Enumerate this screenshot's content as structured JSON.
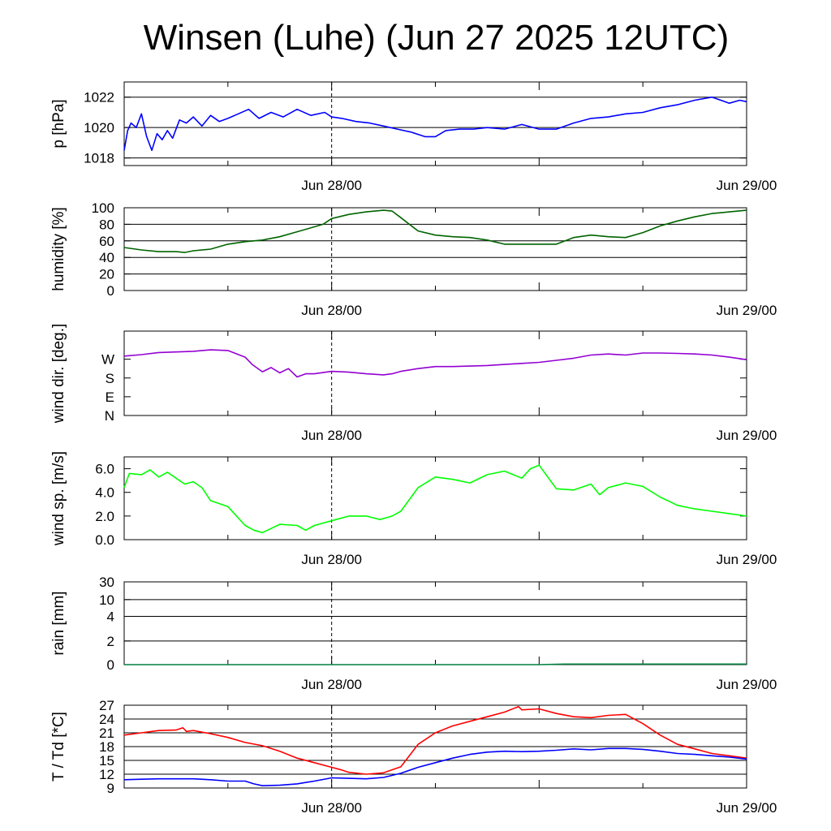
{
  "title": "Winsen (Luhe) (Jun 27 2025 12UTC)",
  "x_tick_labels": [
    "Jun 28/00",
    "Jun 29/00"
  ],
  "chart_data": [
    {
      "type": "line",
      "ylabel": "p [hPa]",
      "ylim": [
        1017.5,
        1023.0
      ],
      "yticks": [
        1018,
        1020,
        1022
      ],
      "ytick_labels": [
        "1018",
        "1020",
        "1022"
      ],
      "grid": true,
      "series": [
        {
          "color": "#0000ff",
          "x": [
            0,
            0.2,
            0.4,
            0.7,
            1.0,
            1.3,
            1.6,
            1.9,
            2.2,
            2.5,
            2.8,
            3.2,
            3.6,
            4.0,
            4.5,
            5.0,
            5.5,
            6.0,
            6.6,
            7.2,
            7.8,
            8.5,
            9.2,
            10.0,
            10.8,
            11.6,
            12.0,
            12.6,
            13.4,
            14.2,
            15.0,
            15.8,
            16.6,
            17.4,
            18.0,
            18.6,
            19.4,
            20.2,
            21.0,
            22.0,
            23.0,
            24.0,
            25.0,
            26.0,
            27.0,
            28.0,
            29.0,
            30.0,
            31.0,
            32.0,
            33.0,
            34.0,
            35.0,
            35.6,
            36.0
          ],
          "y": [
            1018.5,
            1019.8,
            1020.3,
            1020.0,
            1020.9,
            1019.4,
            1018.5,
            1019.6,
            1019.2,
            1019.8,
            1019.3,
            1020.5,
            1020.3,
            1020.7,
            1020.1,
            1020.8,
            1020.4,
            1020.6,
            1020.9,
            1021.2,
            1020.6,
            1021.0,
            1020.7,
            1021.2,
            1020.8,
            1021.0,
            1020.7,
            1020.6,
            1020.4,
            1020.3,
            1020.1,
            1019.9,
            1019.7,
            1019.4,
            1019.4,
            1019.8,
            1019.9,
            1019.9,
            1020.0,
            1019.9,
            1020.2,
            1019.9,
            1019.9,
            1020.3,
            1020.6,
            1020.7,
            1020.9,
            1021.0,
            1021.3,
            1021.5,
            1021.8,
            1022.0,
            1021.6,
            1021.8,
            1021.7
          ]
        }
      ]
    },
    {
      "type": "line",
      "ylabel": "humidity [%]",
      "ylim": [
        0,
        100
      ],
      "yticks": [
        0,
        20,
        40,
        60,
        80,
        100
      ],
      "ytick_labels": [
        "0",
        "20",
        "40",
        "60",
        "80",
        "100"
      ],
      "grid": true,
      "series": [
        {
          "color": "#006400",
          "x": [
            0,
            1,
            2,
            3,
            3.5,
            4,
            5,
            6,
            7,
            8,
            9,
            10,
            11,
            11.5,
            12,
            13,
            14,
            15,
            15.5,
            16,
            17,
            18,
            19,
            20,
            21,
            22,
            23,
            24,
            25,
            26,
            27,
            28,
            29,
            30,
            31,
            32,
            33,
            34,
            35,
            36
          ],
          "y": [
            52,
            49,
            47,
            47,
            46,
            48,
            50,
            56,
            59,
            61,
            65,
            71,
            77,
            80,
            87,
            92,
            95,
            97,
            96,
            88,
            72,
            67,
            65,
            64,
            61,
            56,
            56,
            56,
            56,
            64,
            67,
            65,
            64,
            70,
            78,
            84,
            89,
            93,
            95,
            97
          ]
        }
      ]
    },
    {
      "type": "line",
      "ylabel": "wind dir. [deg.]",
      "ylim": [
        0,
        405
      ],
      "yticks": [
        0,
        90,
        180,
        270
      ],
      "ytick_labels": [
        "N",
        "E",
        "S",
        "W"
      ],
      "grid": false,
      "series": [
        {
          "color": "#9400d3",
          "x": [
            0,
            1,
            2,
            3,
            4,
            5,
            6,
            7,
            7.4,
            8,
            8.5,
            9,
            9.5,
            10,
            10.5,
            11,
            12,
            13,
            14,
            15,
            15.5,
            16,
            17,
            18,
            19,
            20,
            21,
            22,
            23,
            24,
            25,
            26,
            27,
            28,
            29,
            30,
            31,
            32,
            33,
            34,
            35,
            36
          ],
          "y": [
            285,
            292,
            302,
            305,
            308,
            315,
            312,
            280,
            245,
            210,
            230,
            205,
            225,
            185,
            200,
            200,
            212,
            208,
            200,
            195,
            200,
            212,
            225,
            235,
            235,
            237,
            240,
            245,
            250,
            255,
            265,
            275,
            290,
            295,
            290,
            300,
            300,
            298,
            295,
            290,
            280,
            268
          ]
        }
      ]
    },
    {
      "type": "line",
      "ylabel": "wind sp. [m/s]",
      "ylim": [
        0,
        7.0
      ],
      "yticks": [
        0,
        2,
        4,
        6
      ],
      "ytick_labels": [
        "0.0",
        "2.0",
        "4.0",
        "6.0"
      ],
      "grid": false,
      "series": [
        {
          "color": "#00ff00",
          "x": [
            0,
            0.3,
            1,
            1.5,
            2,
            2.5,
            3,
            3.5,
            4,
            4.5,
            5,
            6,
            6.5,
            7,
            7.5,
            8,
            9,
            10,
            10.5,
            11,
            12,
            13,
            14,
            14.8,
            15.5,
            16,
            17,
            18,
            19,
            20,
            21,
            22,
            23,
            23.5,
            24,
            25,
            26,
            27,
            27.5,
            28,
            29,
            30,
            31,
            32,
            33,
            34,
            35,
            36
          ],
          "y": [
            4.4,
            5.6,
            5.5,
            5.9,
            5.3,
            5.7,
            5.2,
            4.7,
            4.9,
            4.4,
            3.3,
            2.8,
            2.0,
            1.2,
            0.8,
            0.6,
            1.3,
            1.2,
            0.8,
            1.2,
            1.6,
            2.0,
            2.0,
            1.7,
            2.0,
            2.4,
            4.4,
            5.3,
            5.1,
            4.8,
            5.5,
            5.8,
            5.2,
            6.0,
            6.3,
            4.3,
            4.2,
            4.7,
            3.8,
            4.4,
            4.8,
            4.5,
            3.6,
            2.9,
            2.6,
            2.4,
            2.2,
            2.0
          ]
        }
      ]
    },
    {
      "type": "area",
      "ylabel": "rain [mm]",
      "scale": "nonlinear",
      "yticks": [
        0,
        2,
        4,
        10,
        30
      ],
      "ytick_labels": [
        "0",
        "2",
        "4",
        "10",
        "30"
      ],
      "grid": true,
      "series": [
        {
          "color": "#008040",
          "x": [
            0,
            24,
            25.5,
            36
          ],
          "y": [
            0,
            0,
            0.05,
            0.05
          ]
        }
      ]
    },
    {
      "type": "line",
      "ylabel": "T / Td [*C]",
      "ylim": [
        9,
        27
      ],
      "yticks": [
        9,
        12,
        15,
        18,
        21,
        24,
        27
      ],
      "ytick_labels": [
        "9",
        "12",
        "15",
        "18",
        "21",
        "24",
        "27"
      ],
      "grid": true,
      "series": [
        {
          "color": "#ff0000",
          "x": [
            0,
            1,
            2,
            3,
            3.4,
            3.6,
            4,
            5,
            6,
            7,
            8,
            9,
            10,
            11,
            12,
            12.5,
            13,
            14,
            15,
            16,
            17,
            18,
            19,
            20,
            21,
            22,
            22.8,
            23,
            24,
            25,
            26,
            27,
            28,
            29,
            30,
            31,
            32,
            33,
            34,
            35,
            36
          ],
          "y": [
            20.5,
            21.0,
            21.5,
            21.6,
            22.1,
            21.3,
            21.5,
            20.8,
            20.0,
            18.9,
            18.2,
            17.0,
            15.5,
            14.5,
            13.5,
            13.0,
            12.4,
            12.0,
            12.3,
            13.6,
            18.5,
            21.0,
            22.5,
            23.5,
            24.5,
            25.5,
            26.7,
            26.0,
            26.2,
            25.2,
            24.5,
            24.3,
            24.8,
            25.0,
            23.0,
            20.5,
            18.5,
            17.5,
            16.5,
            16.0,
            15.5
          ]
        },
        {
          "color": "#0000ff",
          "x": [
            0,
            1,
            2,
            3,
            4,
            5,
            6,
            7,
            7.5,
            8,
            9,
            10,
            11,
            12,
            13,
            14,
            15,
            16,
            17,
            18,
            19,
            20,
            21,
            22,
            23,
            24,
            25,
            26,
            27,
            28,
            29,
            30,
            31,
            32,
            33,
            34,
            35,
            36
          ],
          "y": [
            10.8,
            10.9,
            11.0,
            11.0,
            11.0,
            10.8,
            10.5,
            10.5,
            9.9,
            9.5,
            9.6,
            9.9,
            10.5,
            11.2,
            11.1,
            11.0,
            11.3,
            12.2,
            13.5,
            14.5,
            15.5,
            16.3,
            16.8,
            17.0,
            16.9,
            17.0,
            17.2,
            17.5,
            17.3,
            17.6,
            17.6,
            17.4,
            17.0,
            16.5,
            16.3,
            16.0,
            15.7,
            15.3
          ]
        }
      ]
    }
  ]
}
